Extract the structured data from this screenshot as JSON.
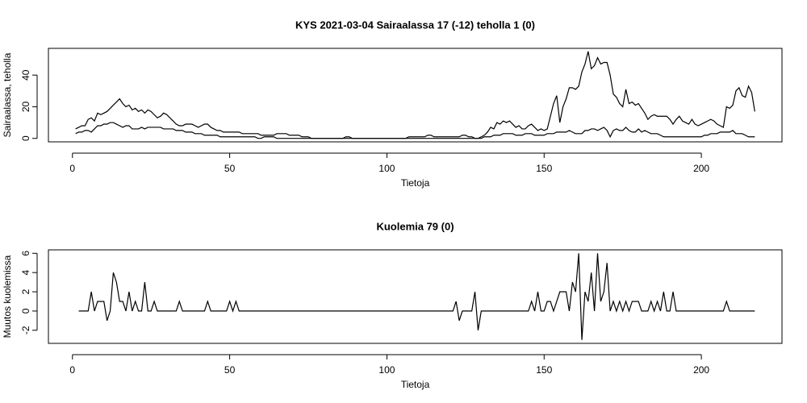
{
  "chart_data": [
    {
      "type": "line",
      "title": "KYS 2021-03-04 Sairaalassa 17 (-12) teholla 1 (0)",
      "x_label": "Tietoja",
      "y_label": "Sairaalassa, teholla",
      "x": [
        1,
        2,
        3,
        4,
        5,
        6,
        7,
        8,
        9,
        10,
        11,
        12,
        13,
        14,
        15,
        16,
        17,
        18,
        19,
        20,
        21,
        22,
        23,
        24,
        25,
        26,
        27,
        28,
        29,
        30,
        31,
        32,
        33,
        34,
        35,
        36,
        37,
        38,
        39,
        40,
        41,
        42,
        43,
        44,
        45,
        46,
        47,
        48,
        49,
        50,
        51,
        52,
        53,
        54,
        55,
        56,
        57,
        58,
        59,
        60,
        61,
        62,
        63,
        64,
        65,
        66,
        67,
        68,
        69,
        70,
        71,
        72,
        73,
        74,
        75,
        76,
        77,
        78,
        79,
        80,
        81,
        82,
        83,
        84,
        85,
        86,
        87,
        88,
        89,
        90,
        91,
        92,
        93,
        94,
        95,
        96,
        97,
        98,
        99,
        100,
        101,
        102,
        103,
        104,
        105,
        106,
        107,
        108,
        109,
        110,
        111,
        112,
        113,
        114,
        115,
        116,
        117,
        118,
        119,
        120,
        121,
        122,
        123,
        124,
        125,
        126,
        127,
        128,
        129,
        130,
        131,
        132,
        133,
        134,
        135,
        136,
        137,
        138,
        139,
        140,
        141,
        142,
        143,
        144,
        145,
        146,
        147,
        148,
        149,
        150,
        151,
        152,
        153,
        154,
        155,
        156,
        157,
        158,
        159,
        160,
        161,
        162,
        163,
        164,
        165,
        166,
        167,
        168,
        169,
        170,
        171,
        172,
        173,
        174,
        175,
        176,
        177,
        178,
        179,
        180,
        181,
        182,
        183,
        184,
        185,
        186,
        187,
        188,
        189,
        190,
        191,
        192,
        193,
        194,
        195,
        196,
        197,
        198,
        199,
        200,
        201,
        202,
        203,
        204,
        205,
        206,
        207,
        208,
        209,
        210,
        211,
        212,
        213,
        214,
        215,
        216,
        217
      ],
      "series": [
        {
          "color": "#000000",
          "values": [
            6,
            7,
            8,
            8,
            12,
            13,
            11,
            16,
            15,
            16,
            17,
            19,
            21,
            23,
            25,
            22,
            20,
            21,
            18,
            19,
            17,
            18,
            16,
            18,
            17,
            15,
            13,
            14,
            16,
            15,
            13,
            11,
            9,
            8,
            8,
            9,
            9,
            9,
            8,
            7,
            8,
            9,
            9,
            7,
            6,
            5,
            5,
            4,
            4,
            4,
            4,
            4,
            4,
            3,
            3,
            3,
            3,
            3,
            3,
            2,
            2,
            2,
            2,
            2,
            3,
            3,
            3,
            3,
            2,
            2,
            2,
            2,
            1,
            1,
            1,
            0,
            0,
            0,
            0,
            0,
            0,
            0,
            0,
            0,
            0,
            0,
            1,
            1,
            0,
            0,
            0,
            0,
            0,
            0,
            0,
            0,
            0,
            0,
            0,
            0,
            0,
            0,
            0,
            0,
            0,
            0,
            1,
            1,
            1,
            1,
            1,
            1,
            2,
            2,
            1,
            1,
            1,
            1,
            1,
            1,
            1,
            1,
            1,
            2,
            2,
            1,
            1,
            0,
            0,
            1,
            2,
            4,
            7,
            6,
            10,
            9,
            11,
            10,
            11,
            9,
            7,
            8,
            6,
            6,
            8,
            9,
            7,
            5,
            6,
            5,
            6,
            14,
            22,
            27,
            10,
            20,
            25,
            32,
            32,
            31,
            33,
            42,
            47,
            55,
            44,
            46,
            51,
            47,
            48,
            48,
            40,
            28,
            26,
            22,
            20,
            31,
            22,
            23,
            21,
            22,
            19,
            16,
            12,
            14,
            15,
            14,
            14,
            14,
            14,
            12,
            9,
            12,
            14,
            11,
            10,
            9,
            12,
            9,
            8,
            9,
            10,
            11,
            12,
            11,
            9,
            8,
            7,
            20,
            19,
            21,
            30,
            32,
            27,
            26,
            33,
            29,
            17
          ]
        },
        {
          "color": "#000000",
          "values": [
            3,
            4,
            4,
            5,
            5,
            4,
            6,
            8,
            8,
            9,
            9,
            10,
            10,
            9,
            8,
            7,
            8,
            8,
            6,
            6,
            6,
            7,
            6,
            7,
            7,
            7,
            7,
            7,
            6,
            6,
            6,
            6,
            5,
            5,
            5,
            4,
            4,
            4,
            3,
            3,
            3,
            2,
            2,
            2,
            2,
            2,
            1,
            1,
            1,
            1,
            1,
            1,
            1,
            1,
            1,
            1,
            1,
            1,
            0,
            0,
            1,
            1,
            1,
            1,
            0,
            0,
            0,
            0,
            0,
            0,
            0,
            0,
            0,
            0,
            0,
            0,
            0,
            0,
            0,
            0,
            0,
            0,
            0,
            0,
            0,
            0,
            0,
            0,
            0,
            0,
            0,
            0,
            0,
            0,
            0,
            0,
            0,
            0,
            0,
            0,
            0,
            0,
            0,
            0,
            0,
            0,
            0,
            0,
            0,
            0,
            0,
            0,
            0,
            0,
            0,
            0,
            0,
            0,
            0,
            0,
            0,
            0,
            0,
            0,
            0,
            0,
            0,
            0,
            0,
            0,
            1,
            1,
            1,
            2,
            2,
            2,
            3,
            3,
            3,
            3,
            2,
            2,
            2,
            3,
            3,
            3,
            2,
            2,
            2,
            2,
            3,
            3,
            3,
            4,
            4,
            4,
            4,
            5,
            4,
            3,
            3,
            3,
            5,
            5,
            6,
            6,
            5,
            6,
            7,
            5,
            1,
            5,
            6,
            5,
            5,
            7,
            5,
            4,
            4,
            6,
            4,
            5,
            4,
            3,
            3,
            3,
            2,
            1,
            1,
            1,
            1,
            1,
            1,
            1,
            1,
            1,
            1,
            1,
            1,
            1,
            2,
            2,
            3,
            3,
            3,
            4,
            4,
            4,
            4,
            5,
            3,
            3,
            3,
            2,
            1,
            1,
            1
          ]
        }
      ],
      "xlim": [
        -7.64,
        225.64
      ],
      "ylim": [
        -2.19,
        56.9
      ],
      "xticks": [
        0,
        50,
        100,
        150,
        200
      ],
      "yticks": [
        0,
        20,
        40
      ]
    },
    {
      "type": "line",
      "title": "Kuolemia 79 (0)",
      "x_label": "Tietoja",
      "y_label": "Muutos kuolemissa",
      "x": [
        2,
        3,
        4,
        5,
        6,
        7,
        8,
        9,
        10,
        11,
        12,
        13,
        14,
        15,
        16,
        17,
        18,
        19,
        20,
        21,
        22,
        23,
        24,
        25,
        26,
        27,
        28,
        29,
        30,
        31,
        32,
        33,
        34,
        35,
        36,
        37,
        38,
        39,
        40,
        41,
        42,
        43,
        44,
        45,
        46,
        47,
        48,
        49,
        50,
        51,
        52,
        53,
        54,
        55,
        56,
        57,
        58,
        59,
        60,
        61,
        62,
        63,
        64,
        65,
        66,
        67,
        68,
        69,
        70,
        71,
        72,
        73,
        74,
        75,
        76,
        77,
        78,
        79,
        80,
        81,
        82,
        83,
        84,
        85,
        86,
        87,
        88,
        89,
        90,
        91,
        92,
        93,
        94,
        95,
        96,
        97,
        98,
        99,
        100,
        101,
        102,
        103,
        104,
        105,
        106,
        107,
        108,
        109,
        110,
        111,
        112,
        113,
        114,
        115,
        116,
        117,
        118,
        119,
        120,
        121,
        122,
        123,
        124,
        125,
        126,
        127,
        128,
        129,
        130,
        131,
        132,
        133,
        134,
        135,
        136,
        137,
        138,
        139,
        140,
        141,
        142,
        143,
        144,
        145,
        146,
        147,
        148,
        149,
        150,
        151,
        152,
        153,
        154,
        155,
        156,
        157,
        158,
        159,
        160,
        161,
        162,
        163,
        164,
        165,
        166,
        167,
        168,
        169,
        170,
        171,
        172,
        173,
        174,
        175,
        176,
        177,
        178,
        179,
        180,
        181,
        182,
        183,
        184,
        185,
        186,
        187,
        188,
        189,
        190,
        191,
        192,
        193,
        194,
        195,
        196,
        197,
        198,
        199,
        200,
        201,
        202,
        203,
        204,
        205,
        206,
        207,
        208,
        209,
        210,
        211,
        212,
        213,
        214,
        215,
        216,
        217
      ],
      "series": [
        {
          "color": "#000000",
          "values": [
            0,
            0,
            0,
            0,
            2,
            0,
            1,
            1,
            1,
            -1,
            0,
            4,
            3,
            1,
            1,
            0,
            2,
            0,
            1,
            0,
            0,
            3,
            0,
            0,
            1,
            0,
            0,
            0,
            0,
            0,
            0,
            0,
            1,
            0,
            0,
            0,
            0,
            0,
            0,
            0,
            0,
            1,
            0,
            0,
            0,
            0,
            0,
            0,
            1,
            0,
            1,
            0,
            0,
            0,
            0,
            0,
            0,
            0,
            0,
            0,
            0,
            0,
            0,
            0,
            0,
            0,
            0,
            0,
            0,
            0,
            0,
            0,
            0,
            0,
            0,
            0,
            0,
            0,
            0,
            0,
            0,
            0,
            0,
            0,
            0,
            0,
            0,
            0,
            0,
            0,
            0,
            0,
            0,
            0,
            0,
            0,
            0,
            0,
            0,
            0,
            0,
            0,
            0,
            0,
            0,
            0,
            0,
            0,
            0,
            0,
            0,
            0,
            0,
            0,
            0,
            0,
            0,
            0,
            0,
            0,
            1,
            -1,
            0,
            0,
            0,
            0,
            2,
            -2,
            0,
            0,
            0,
            0,
            0,
            0,
            0,
            0,
            0,
            0,
            0,
            0,
            0,
            0,
            0,
            0,
            1,
            0,
            2,
            0,
            0,
            1,
            1,
            0,
            1,
            2,
            2,
            2,
            0,
            3,
            2,
            6,
            -3,
            2,
            1,
            4,
            0,
            6,
            1,
            2,
            5,
            0,
            1,
            0,
            1,
            0,
            1,
            0,
            1,
            1,
            1,
            0,
            0,
            0,
            1,
            0,
            1,
            0,
            2,
            0,
            0,
            2,
            0,
            0,
            0,
            0,
            0,
            0,
            0,
            0,
            0,
            0,
            0,
            0,
            0,
            0,
            0,
            0,
            1,
            0,
            0,
            0,
            0,
            0,
            0,
            0,
            0,
            0
          ]
        }
      ],
      "xlim": [
        -7.64,
        225.64
      ],
      "ylim": [
        -3.36,
        6.36
      ],
      "xticks": [
        0,
        50,
        100,
        150,
        200
      ],
      "yticks": [
        -2,
        0,
        2,
        4,
        6
      ]
    }
  ]
}
